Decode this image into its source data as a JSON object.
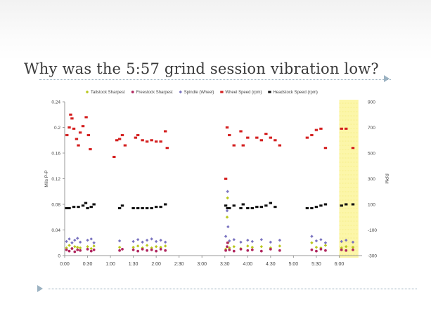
{
  "slide": {
    "title": "Why was the 5:57 grind session vibration low?"
  },
  "chart_data": {
    "type": "scatter",
    "title": "",
    "xlabel": "",
    "ylabel": "Mils P-P",
    "y2label": "RPM",
    "xlim": [
      0,
      6.5
    ],
    "ylim": [
      0,
      0.24
    ],
    "y2lim": [
      -300,
      900
    ],
    "x_ticks": [
      "0:00",
      "0:30",
      "1:00",
      "1:30",
      "2:00",
      "2:30",
      "3:00",
      "3:30",
      "4:00",
      "4:30",
      "5:00",
      "5:30",
      "6:00"
    ],
    "y_ticks": [
      "0",
      "0.04",
      "0.08",
      "0.12",
      "0.16",
      "0.2",
      "0.24"
    ],
    "y2_ticks": [
      "-300",
      "-100",
      "100",
      "300",
      "500",
      "700",
      "900"
    ],
    "legend_position": "top",
    "highlight": {
      "x_range": [
        6.0,
        6.42
      ],
      "color": "#fbf49a"
    },
    "series": [
      {
        "name": "Tailstock Sharpest",
        "axis": "left",
        "color": "#b9c81c",
        "marker": "diamond",
        "points": [
          [
            0.04,
            0.012
          ],
          [
            0.1,
            0.016
          ],
          [
            0.16,
            0.011
          ],
          [
            0.22,
            0.014
          ],
          [
            0.28,
            0.013
          ],
          [
            0.34,
            0.012
          ],
          [
            0.5,
            0.014
          ],
          [
            0.58,
            0.011
          ],
          [
            0.64,
            0.015
          ],
          [
            1.2,
            0.013
          ],
          [
            1.5,
            0.013
          ],
          [
            1.6,
            0.015
          ],
          [
            1.7,
            0.012
          ],
          [
            1.8,
            0.016
          ],
          [
            1.9,
            0.012
          ],
          [
            2.0,
            0.014
          ],
          [
            2.1,
            0.013
          ],
          [
            2.2,
            0.015
          ],
          [
            3.52,
            0.01
          ],
          [
            3.55,
            0.06
          ],
          [
            3.56,
            0.09
          ],
          [
            3.57,
            0.02
          ],
          [
            3.6,
            0.012
          ],
          [
            3.7,
            0.014
          ],
          [
            3.85,
            0.011
          ],
          [
            4.0,
            0.015
          ],
          [
            4.1,
            0.013
          ],
          [
            4.3,
            0.014
          ],
          [
            4.5,
            0.012
          ],
          [
            4.7,
            0.015
          ],
          [
            5.4,
            0.02
          ],
          [
            5.5,
            0.013
          ],
          [
            5.6,
            0.012
          ],
          [
            5.7,
            0.016
          ],
          [
            6.05,
            0.012
          ],
          [
            6.15,
            0.014
          ],
          [
            6.3,
            0.013
          ]
        ]
      },
      {
        "name": "Freestock Sharpest",
        "axis": "left",
        "color": "#b0265e",
        "marker": "circle",
        "points": [
          [
            0.04,
            0.009
          ],
          [
            0.1,
            0.007
          ],
          [
            0.16,
            0.011
          ],
          [
            0.22,
            0.006
          ],
          [
            0.28,
            0.009
          ],
          [
            0.34,
            0.008
          ],
          [
            0.5,
            0.01
          ],
          [
            0.58,
            0.007
          ],
          [
            0.64,
            0.009
          ],
          [
            1.2,
            0.008
          ],
          [
            1.26,
            0.01
          ],
          [
            1.5,
            0.009
          ],
          [
            1.6,
            0.007
          ],
          [
            1.7,
            0.01
          ],
          [
            1.8,
            0.008
          ],
          [
            1.9,
            0.009
          ],
          [
            2.0,
            0.007
          ],
          [
            2.1,
            0.01
          ],
          [
            2.2,
            0.008
          ],
          [
            3.52,
            0.008
          ],
          [
            3.55,
            0.014
          ],
          [
            3.56,
            0.02
          ],
          [
            3.6,
            0.009
          ],
          [
            3.7,
            0.007
          ],
          [
            3.85,
            0.01
          ],
          [
            4.0,
            0.008
          ],
          [
            4.1,
            0.009
          ],
          [
            4.3,
            0.007
          ],
          [
            4.5,
            0.01
          ],
          [
            4.7,
            0.008
          ],
          [
            5.4,
            0.009
          ],
          [
            5.5,
            0.007
          ],
          [
            5.6,
            0.01
          ],
          [
            5.7,
            0.008
          ],
          [
            6.05,
            0.009
          ],
          [
            6.15,
            0.008
          ],
          [
            6.3,
            0.009
          ]
        ]
      },
      {
        "name": "Spindle (Wheel)",
        "axis": "left",
        "color": "#7a73c0",
        "marker": "diamond",
        "points": [
          [
            0.04,
            0.022
          ],
          [
            0.1,
            0.026
          ],
          [
            0.16,
            0.02
          ],
          [
            0.22,
            0.024
          ],
          [
            0.28,
            0.027
          ],
          [
            0.34,
            0.021
          ],
          [
            0.5,
            0.024
          ],
          [
            0.58,
            0.026
          ],
          [
            0.64,
            0.02
          ],
          [
            1.2,
            0.023
          ],
          [
            1.5,
            0.022
          ],
          [
            1.6,
            0.025
          ],
          [
            1.7,
            0.021
          ],
          [
            1.8,
            0.024
          ],
          [
            1.9,
            0.026
          ],
          [
            2.0,
            0.022
          ],
          [
            2.1,
            0.024
          ],
          [
            2.2,
            0.021
          ],
          [
            3.52,
            0.03
          ],
          [
            3.55,
            0.07
          ],
          [
            3.56,
            0.1
          ],
          [
            3.57,
            0.045
          ],
          [
            3.6,
            0.023
          ],
          [
            3.7,
            0.025
          ],
          [
            3.85,
            0.021
          ],
          [
            4.0,
            0.024
          ],
          [
            4.1,
            0.022
          ],
          [
            4.3,
            0.025
          ],
          [
            4.5,
            0.021
          ],
          [
            4.7,
            0.024
          ],
          [
            5.4,
            0.03
          ],
          [
            5.5,
            0.023
          ],
          [
            5.6,
            0.025
          ],
          [
            5.7,
            0.02
          ],
          [
            6.05,
            0.022
          ],
          [
            6.15,
            0.024
          ],
          [
            6.3,
            0.021
          ]
        ]
      },
      {
        "name": "Wheel Speed (rpm)",
        "axis": "right",
        "color": "#d42020",
        "marker": "square",
        "points": [
          [
            0.05,
            640
          ],
          [
            0.1,
            700
          ],
          [
            0.13,
            800
          ],
          [
            0.16,
            770
          ],
          [
            0.2,
            690
          ],
          [
            0.26,
            610
          ],
          [
            0.3,
            560
          ],
          [
            0.34,
            660
          ],
          [
            0.4,
            710
          ],
          [
            0.47,
            780
          ],
          [
            0.52,
            640
          ],
          [
            0.56,
            530
          ],
          [
            1.08,
            470
          ],
          [
            1.14,
            600
          ],
          [
            1.2,
            610
          ],
          [
            1.26,
            640
          ],
          [
            1.32,
            560
          ],
          [
            1.55,
            620
          ],
          [
            1.6,
            640
          ],
          [
            1.7,
            600
          ],
          [
            1.8,
            590
          ],
          [
            1.9,
            600
          ],
          [
            2.0,
            590
          ],
          [
            2.1,
            590
          ],
          [
            2.2,
            670
          ],
          [
            2.24,
            540
          ],
          [
            3.52,
            300
          ],
          [
            3.55,
            700
          ],
          [
            3.6,
            640
          ],
          [
            3.7,
            560
          ],
          [
            3.85,
            670
          ],
          [
            3.9,
            560
          ],
          [
            4.0,
            620
          ],
          [
            4.2,
            620
          ],
          [
            4.3,
            600
          ],
          [
            4.4,
            650
          ],
          [
            4.5,
            620
          ],
          [
            4.6,
            600
          ],
          [
            4.7,
            560
          ],
          [
            5.3,
            620
          ],
          [
            5.4,
            640
          ],
          [
            5.5,
            680
          ],
          [
            5.6,
            690
          ],
          [
            5.7,
            540
          ],
          [
            6.05,
            690
          ],
          [
            6.15,
            690
          ],
          [
            6.3,
            540
          ]
        ]
      },
      {
        "name": "Headstock Speed (rpm)",
        "axis": "right",
        "color": "#111111",
        "marker": "square",
        "points": [
          [
            0.04,
            70
          ],
          [
            0.1,
            70
          ],
          [
            0.2,
            80
          ],
          [
            0.3,
            80
          ],
          [
            0.4,
            90
          ],
          [
            0.46,
            110
          ],
          [
            0.5,
            70
          ],
          [
            0.58,
            80
          ],
          [
            0.64,
            100
          ],
          [
            1.2,
            70
          ],
          [
            1.26,
            90
          ],
          [
            1.5,
            70
          ],
          [
            1.6,
            70
          ],
          [
            1.7,
            70
          ],
          [
            1.8,
            70
          ],
          [
            1.9,
            70
          ],
          [
            2.0,
            80
          ],
          [
            2.1,
            80
          ],
          [
            2.2,
            100
          ],
          [
            3.52,
            90
          ],
          [
            3.56,
            70
          ],
          [
            3.6,
            70
          ],
          [
            3.7,
            90
          ],
          [
            3.85,
            70
          ],
          [
            3.9,
            100
          ],
          [
            4.0,
            70
          ],
          [
            4.1,
            70
          ],
          [
            4.2,
            80
          ],
          [
            4.3,
            80
          ],
          [
            4.4,
            90
          ],
          [
            4.5,
            110
          ],
          [
            4.6,
            80
          ],
          [
            5.3,
            70
          ],
          [
            5.4,
            70
          ],
          [
            5.5,
            80
          ],
          [
            5.6,
            90
          ],
          [
            5.7,
            100
          ],
          [
            6.05,
            90
          ],
          [
            6.15,
            100
          ],
          [
            6.3,
            100
          ]
        ]
      }
    ]
  }
}
